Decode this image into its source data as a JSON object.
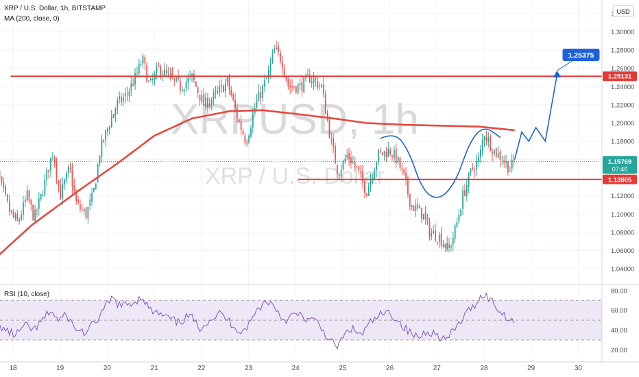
{
  "header": {
    "symbol_line": "XRP / U.S. Dollar, 1h, BITSTAMP",
    "ma_line": "MA (200, close, 0)",
    "currency_badge": "USD"
  },
  "watermark": {
    "ticker": "XRPUSD, 1h",
    "name": "XRP / U.S. Dollar"
  },
  "rsi_panel": {
    "label": "RSI (10, close)"
  },
  "colors": {
    "up": "#26a69a",
    "down": "#ef5350",
    "ma": "#e8483f",
    "level": "#e53935",
    "projection": "#1e63d6",
    "rsi": "#7e57c2",
    "rsi_band": "#ede7f6",
    "axis_text": "#4a4a4a"
  },
  "chart_data": [
    {
      "type": "candlestick",
      "title": "XRP / U.S. Dollar, 1h, BITSTAMP",
      "x_tick_labels": [
        "18",
        "19",
        "20",
        "21",
        "22",
        "23",
        "24",
        "25",
        "26",
        "27",
        "28",
        "29",
        "30"
      ],
      "y_ticks": [
        1.04,
        1.06,
        1.08,
        1.1,
        1.12,
        1.14,
        1.16,
        1.18,
        1.2,
        1.22,
        1.24,
        1.26,
        1.28,
        1.3,
        1.32
      ],
      "ylim": [
        1.025,
        1.335
      ],
      "y_tick_decimals": 5,
      "close_path": [
        [
          17.55,
          1.17
        ],
        [
          17.75,
          1.13
        ],
        [
          17.95,
          1.1
        ],
        [
          18.1,
          1.09
        ],
        [
          18.3,
          1.12
        ],
        [
          18.45,
          1.095
        ],
        [
          18.6,
          1.12
        ],
        [
          18.85,
          1.17
        ],
        [
          19.0,
          1.12
        ],
        [
          19.2,
          1.15
        ],
        [
          19.35,
          1.11
        ],
        [
          19.55,
          1.1
        ],
        [
          19.7,
          1.12
        ],
        [
          19.85,
          1.17
        ],
        [
          20.05,
          1.2
        ],
        [
          20.2,
          1.22
        ],
        [
          20.4,
          1.23
        ],
        [
          20.6,
          1.25
        ],
        [
          20.75,
          1.27
        ],
        [
          20.9,
          1.24
        ],
        [
          21.1,
          1.26
        ],
        [
          21.3,
          1.25
        ],
        [
          21.55,
          1.24
        ],
        [
          21.8,
          1.25
        ],
        [
          22.05,
          1.22
        ],
        [
          22.3,
          1.23
        ],
        [
          22.55,
          1.245
        ],
        [
          22.8,
          1.2
        ],
        [
          22.95,
          1.18
        ],
        [
          23.15,
          1.22
        ],
        [
          23.4,
          1.25
        ],
        [
          23.55,
          1.28
        ],
        [
          23.7,
          1.27
        ],
        [
          23.85,
          1.24
        ],
        [
          24.1,
          1.24
        ],
        [
          24.3,
          1.25
        ],
        [
          24.55,
          1.24
        ],
        [
          24.75,
          1.18
        ],
        [
          24.9,
          1.145
        ],
        [
          25.1,
          1.165
        ],
        [
          25.3,
          1.15
        ],
        [
          25.5,
          1.125
        ],
        [
          25.75,
          1.165
        ],
        [
          26.0,
          1.17
        ],
        [
          26.15,
          1.16
        ],
        [
          26.3,
          1.14
        ],
        [
          26.45,
          1.11
        ],
        [
          26.7,
          1.1
        ],
        [
          26.85,
          1.08
        ],
        [
          27.05,
          1.075
        ],
        [
          27.25,
          1.06
        ],
        [
          27.4,
          1.085
        ],
        [
          27.55,
          1.12
        ],
        [
          27.75,
          1.15
        ],
        [
          27.9,
          1.16
        ],
        [
          28.0,
          1.19
        ],
        [
          28.2,
          1.17
        ],
        [
          28.4,
          1.16
        ],
        [
          28.55,
          1.15
        ],
        [
          28.65,
          1.158
        ]
      ],
      "moving_average": {
        "name": "MA (200, close, 0)",
        "points": [
          [
            17.55,
            1.048
          ],
          [
            18.4,
            1.088
          ],
          [
            19.4,
            1.126
          ],
          [
            20.2,
            1.155
          ],
          [
            21.0,
            1.186
          ],
          [
            21.8,
            1.205
          ],
          [
            22.6,
            1.213
          ],
          [
            23.3,
            1.214
          ],
          [
            24.0,
            1.21
          ],
          [
            24.8,
            1.205
          ],
          [
            25.5,
            1.2
          ],
          [
            26.3,
            1.198
          ],
          [
            27.1,
            1.197
          ],
          [
            27.9,
            1.196
          ],
          [
            28.65,
            1.192
          ]
        ]
      },
      "levels": [
        {
          "label": "1.25131",
          "value": 1.25131,
          "from_x": 17.95
        },
        {
          "label": "1.13805",
          "value": 1.13805,
          "from_x": 24.05
        }
      ],
      "last_price": {
        "label": "1.15769",
        "value": 1.15769,
        "countdown": "07:46"
      },
      "projection": {
        "target_label": "1.25375",
        "points": [
          [
            28.65,
            1.16
          ],
          [
            28.8,
            1.19
          ],
          [
            28.95,
            1.18
          ],
          [
            29.1,
            1.195
          ],
          [
            29.3,
            1.18
          ],
          [
            29.55,
            1.253
          ]
        ]
      },
      "pattern_curve": {
        "points": [
          [
            25.8,
            1.183
          ],
          [
            26.1,
            1.19
          ],
          [
            26.4,
            1.17
          ],
          [
            26.7,
            1.125
          ],
          [
            27.05,
            1.115
          ],
          [
            27.4,
            1.135
          ],
          [
            27.7,
            1.18
          ],
          [
            28.0,
            1.197
          ],
          [
            28.35,
            1.184
          ]
        ]
      }
    },
    {
      "type": "line",
      "title": "RSI (10, close)",
      "ylim": [
        12,
        84
      ],
      "y_ticks": [
        20,
        40,
        60,
        80
      ],
      "band": [
        30,
        70
      ],
      "midline": 50,
      "series": [
        {
          "name": "RSI (10, close)",
          "points": [
            [
              17.55,
              55
            ],
            [
              17.7,
              45
            ],
            [
              17.9,
              38
            ],
            [
              18.05,
              35
            ],
            [
              18.25,
              44
            ],
            [
              18.45,
              40
            ],
            [
              18.6,
              48
            ],
            [
              18.8,
              60
            ],
            [
              18.95,
              50
            ],
            [
              19.15,
              55
            ],
            [
              19.3,
              42
            ],
            [
              19.55,
              37
            ],
            [
              19.75,
              48
            ],
            [
              19.95,
              62
            ],
            [
              20.1,
              72
            ],
            [
              20.3,
              64
            ],
            [
              20.55,
              68
            ],
            [
              20.75,
              74
            ],
            [
              20.9,
              60
            ],
            [
              21.1,
              56
            ],
            [
              21.3,
              52
            ],
            [
              21.5,
              47
            ],
            [
              21.75,
              55
            ],
            [
              21.95,
              42
            ],
            [
              22.15,
              50
            ],
            [
              22.4,
              57
            ],
            [
              22.6,
              48
            ],
            [
              22.85,
              38
            ],
            [
              23.0,
              45
            ],
            [
              23.2,
              62
            ],
            [
              23.4,
              70
            ],
            [
              23.55,
              64
            ],
            [
              23.75,
              50
            ],
            [
              24.0,
              56
            ],
            [
              24.2,
              52
            ],
            [
              24.45,
              48
            ],
            [
              24.65,
              35
            ],
            [
              24.85,
              22
            ],
            [
              24.95,
              28
            ],
            [
              25.15,
              42
            ],
            [
              25.4,
              35
            ],
            [
              25.6,
              48
            ],
            [
              25.8,
              55
            ],
            [
              26.0,
              58
            ],
            [
              26.2,
              48
            ],
            [
              26.4,
              38
            ],
            [
              26.6,
              32
            ],
            [
              26.8,
              40
            ],
            [
              27.0,
              35
            ],
            [
              27.2,
              30
            ],
            [
              27.4,
              42
            ],
            [
              27.6,
              55
            ],
            [
              27.8,
              66
            ],
            [
              28.0,
              77
            ],
            [
              28.15,
              70
            ],
            [
              28.35,
              58
            ],
            [
              28.55,
              52
            ],
            [
              28.65,
              48
            ]
          ]
        }
      ]
    }
  ]
}
